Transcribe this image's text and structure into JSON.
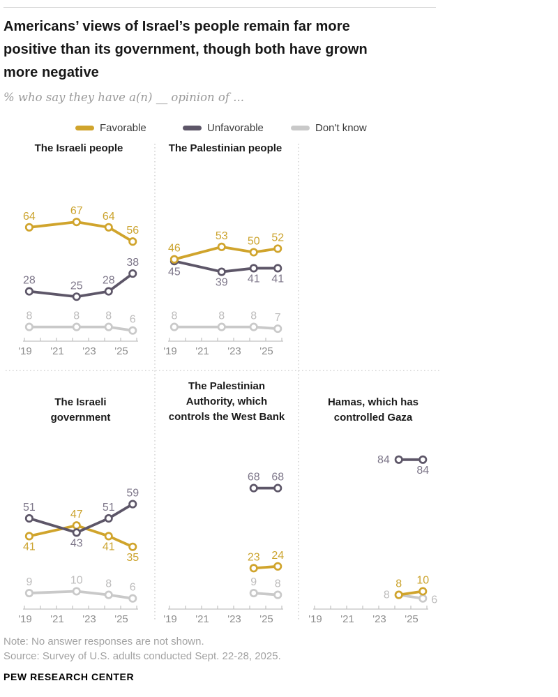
{
  "header": {
    "title": "Americans’ views of Israel’s people remain far more\npositive than its government, though both have grown\nmore negative",
    "subtitle": "% who say they have a(n) __ opinion of ..."
  },
  "legend": {
    "items": [
      {
        "label": "Favorable",
        "key": "favorable"
      },
      {
        "label": "Unfavorable",
        "key": "unfavorable"
      },
      {
        "label": "Don't know",
        "key": "dont_know"
      }
    ]
  },
  "colors": {
    "favorable": {
      "line": "#d0a42c",
      "label": "#cba32d"
    },
    "unfavorable": {
      "line": "#5d5668",
      "label": "#7d7689"
    },
    "dont_know": {
      "line": "#c9c9c9",
      "label": "#bdbcbc"
    },
    "axis": "#c2c2c2",
    "tick_label": "#8e8e8e",
    "separator": "#cbcbcb"
  },
  "footer": {
    "note": "Note: No answer responses are not shown.",
    "source": "Source: Survey of U.S. adults conducted Sept. 22-28, 2025.",
    "brand": "PEW RESEARCH CENTER"
  },
  "chart_data": [
    {
      "type": "line",
      "title": "The Israeli people",
      "title_lines": "The Israeli people",
      "x": [
        2019.3,
        2022.25,
        2024.25,
        2025.75
      ],
      "x_tick_labels": [
        "'19",
        "'21",
        "'23",
        "'25"
      ],
      "ylim": [
        0,
        100
      ],
      "series": [
        {
          "name": "Favorable",
          "key": "favorable",
          "values": [
            64,
            67,
            64,
            56
          ],
          "label_pos": [
            "above",
            "above",
            "above",
            "above"
          ]
        },
        {
          "name": "Unfavorable",
          "key": "unfavorable",
          "values": [
            28,
            25,
            28,
            38
          ],
          "label_pos": [
            "above",
            "above",
            "above",
            "above"
          ]
        },
        {
          "name": "Don't know",
          "key": "dont_know",
          "values": [
            8,
            8,
            8,
            6
          ],
          "label_pos": [
            "above",
            "above",
            "above",
            "above"
          ]
        }
      ],
      "draw_order": [
        2,
        1,
        0
      ]
    },
    {
      "type": "line",
      "title": "The Palestinian people",
      "title_lines": "The Palestinian people",
      "x": [
        2019.3,
        2022.25,
        2024.25,
        2025.75
      ],
      "x_tick_labels": [
        "'19",
        "'21",
        "'23",
        "'25"
      ],
      "ylim": [
        0,
        100
      ],
      "series": [
        {
          "name": "Favorable",
          "key": "favorable",
          "values": [
            46,
            53,
            50,
            52
          ],
          "label_pos": [
            "above",
            "above",
            "above",
            "above"
          ]
        },
        {
          "name": "Unfavorable",
          "key": "unfavorable",
          "values": [
            45,
            39,
            41,
            41
          ],
          "label_pos": [
            "below",
            "below",
            "below",
            "below"
          ]
        },
        {
          "name": "Don't know",
          "key": "dont_know",
          "values": [
            8,
            8,
            8,
            7
          ],
          "label_pos": [
            "above",
            "above",
            "above",
            "above"
          ]
        }
      ],
      "draw_order": [
        2,
        1,
        0
      ]
    },
    {
      "type": "line",
      "title": "The Israeli government",
      "title_lines": "The Israeli\ngovernment",
      "x": [
        2019.3,
        2022.25,
        2024.25,
        2025.75
      ],
      "x_tick_labels": [
        "'19",
        "'21",
        "'23",
        "'25"
      ],
      "ylim": [
        0,
        100
      ],
      "series": [
        {
          "name": "Favorable",
          "key": "favorable",
          "values": [
            41,
            47,
            41,
            35
          ],
          "label_pos": [
            "below",
            "above",
            "below",
            "below"
          ]
        },
        {
          "name": "Unfavorable",
          "key": "unfavorable",
          "values": [
            51,
            43,
            51,
            59
          ],
          "label_pos": [
            "above",
            "below",
            "above",
            "above"
          ]
        },
        {
          "name": "Don't know",
          "key": "dont_know",
          "values": [
            9,
            10,
            8,
            6
          ],
          "label_pos": [
            "above",
            "above",
            "above",
            "above"
          ]
        }
      ],
      "draw_order": [
        2,
        0,
        1
      ]
    },
    {
      "type": "line",
      "title": "The Palestinian Authority, which controls the West Bank",
      "title_lines": "The Palestinian\nAuthority, which\ncontrols the West Bank",
      "x": [
        2024.25,
        2025.75
      ],
      "x_tick_labels": [
        "'19",
        "'21",
        "'23",
        "'25"
      ],
      "ylim": [
        0,
        100
      ],
      "series": [
        {
          "name": "Favorable",
          "key": "favorable",
          "values": [
            23,
            24
          ],
          "label_pos": [
            "above",
            "above"
          ]
        },
        {
          "name": "Unfavorable",
          "key": "unfavorable",
          "values": [
            68,
            68
          ],
          "label_pos": [
            "above",
            "above"
          ]
        },
        {
          "name": "Don't know",
          "key": "dont_know",
          "values": [
            9,
            8
          ],
          "label_pos": [
            "above",
            "above"
          ]
        }
      ],
      "draw_order": [
        2,
        1,
        0
      ]
    },
    {
      "type": "line",
      "title": "Hamas, which has controlled Gaza",
      "title_lines": "Hamas, which has\ncontrolled Gaza",
      "x": [
        2024.25,
        2025.75
      ],
      "x_tick_labels": [
        "'19",
        "'21",
        "'23",
        "'25"
      ],
      "ylim": [
        0,
        100
      ],
      "series": [
        {
          "name": "Favorable",
          "key": "favorable",
          "values": [
            8,
            10
          ],
          "label_pos": [
            "above",
            "above"
          ]
        },
        {
          "name": "Unfavorable",
          "key": "unfavorable",
          "values": [
            84,
            84
          ],
          "label_pos": [
            "left",
            "below"
          ]
        },
        {
          "name": "Don't know",
          "key": "dont_know",
          "values": [
            8,
            6
          ],
          "label_pos": [
            "left",
            "right"
          ]
        }
      ],
      "draw_order": [
        2,
        1,
        0
      ]
    }
  ]
}
